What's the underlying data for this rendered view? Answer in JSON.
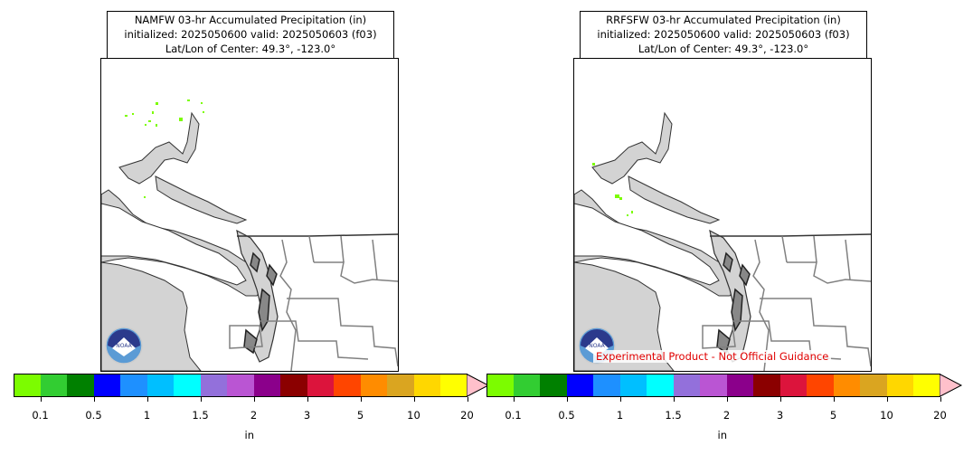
{
  "panels": [
    {
      "title_line1": "NAMFW 03-hr Accumulated Precipitation (in)",
      "title_line2": "initialized: 2025050600 valid: 2025050603 (f03)",
      "title_line3": "Lat/Lon of Center: 49.3°, -123.0°",
      "logo_text": "NOAA",
      "disclaimer": ""
    },
    {
      "title_line1": "RRFSFW 03-hr Accumulated Precipitation (in)",
      "title_line2": "initialized: 2025050600 valid: 2025050603 (f03)",
      "title_line3": "Lat/Lon of Center: 49.3°, -123.0°",
      "logo_text": "NOAA",
      "disclaimer": "Experimental Product - Not Official Guidance"
    }
  ],
  "colorbar": {
    "unit": "in",
    "colors": [
      "#7cfc00",
      "#32cd32",
      "#008000",
      "#0000ff",
      "#1e90ff",
      "#00bfff",
      "#00ffff",
      "#9370db",
      "#ba55d3",
      "#8b008b",
      "#8b0000",
      "#dc143c",
      "#ff4500",
      "#ff8c00",
      "#daa520",
      "#ffd700",
      "#ffff00"
    ],
    "extend_color": "#ffc0cb",
    "tick_labels": [
      "0.1",
      "0.5",
      "1",
      "1.5",
      "2",
      "3",
      "5",
      "10",
      "20"
    ]
  },
  "map_colors": {
    "water": "#d3d3d3",
    "coast": "#333333",
    "border": "#808080",
    "precip": "#7cfc00"
  }
}
